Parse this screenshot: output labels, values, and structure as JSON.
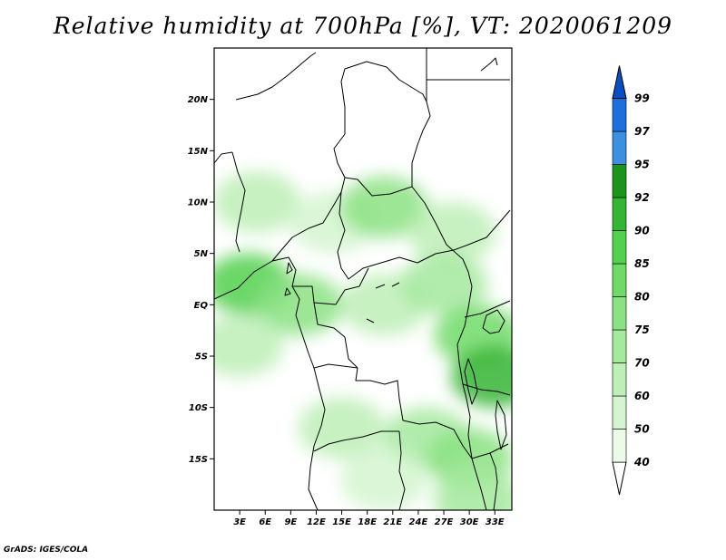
{
  "title": "Relative humidity at 700hPa [%], VT: 2020061209",
  "credit": "GrADS: IGES/COLA",
  "map": {
    "lon_range": [
      0,
      35
    ],
    "lat_range": [
      -20,
      25
    ],
    "lat_labels": [
      {
        "value": 20,
        "label": "20N"
      },
      {
        "value": 15,
        "label": "15N"
      },
      {
        "value": 10,
        "label": "10N"
      },
      {
        "value": 5,
        "label": "5N"
      },
      {
        "value": 0,
        "label": "EQ"
      },
      {
        "value": -5,
        "label": "5S"
      },
      {
        "value": -10,
        "label": "10S"
      },
      {
        "value": -15,
        "label": "15S"
      }
    ],
    "lon_labels": [
      {
        "value": 3,
        "label": "3E"
      },
      {
        "value": 6,
        "label": "6E"
      },
      {
        "value": 9,
        "label": "9E"
      },
      {
        "value": 12,
        "label": "12E"
      },
      {
        "value": 15,
        "label": "15E"
      },
      {
        "value": 18,
        "label": "18E"
      },
      {
        "value": 21,
        "label": "21E"
      },
      {
        "value": 24,
        "label": "24E"
      },
      {
        "value": 27,
        "label": "27E"
      },
      {
        "value": 30,
        "label": "30E"
      },
      {
        "value": 33,
        "label": "33E"
      }
    ]
  },
  "colorbar": {
    "levels": [
      "40",
      "50",
      "60",
      "70",
      "75",
      "80",
      "85",
      "90",
      "92",
      "95",
      "97",
      "99"
    ],
    "colors": [
      "#ffffff",
      "#ebfbe8",
      "#d4f5cf",
      "#bdefb6",
      "#a5e99d",
      "#8be283",
      "#70da69",
      "#52d04e",
      "#36b436",
      "#1c941c",
      "#3d8fe0",
      "#1e6fdc",
      "#0a4fbf"
    ]
  },
  "humidity_blobs": [
    {
      "lon": 5,
      "lat": 10,
      "level": 60
    },
    {
      "lon": 14,
      "lat": 8,
      "level": 50
    },
    {
      "lon": 20,
      "lat": 9.5,
      "level": 75
    },
    {
      "lon": 28,
      "lat": 7,
      "level": 60
    },
    {
      "lon": 4,
      "lat": 2,
      "level": 85
    },
    {
      "lon": 10,
      "lat": 0,
      "level": 75
    },
    {
      "lon": 20,
      "lat": 0,
      "level": 60
    },
    {
      "lon": 27,
      "lat": 2,
      "level": 70
    },
    {
      "lon": 31,
      "lat": -3,
      "level": 80
    },
    {
      "lon": 33,
      "lat": -7,
      "level": 90
    },
    {
      "lon": 25,
      "lat": -13,
      "level": 70
    },
    {
      "lon": 30,
      "lat": -15,
      "level": 75
    },
    {
      "lon": 31,
      "lat": -19,
      "level": 70
    },
    {
      "lon": 15,
      "lat": -12,
      "level": 60
    },
    {
      "lon": 3,
      "lat": -4,
      "level": 60
    },
    {
      "lon": 20,
      "lat": -17,
      "level": 50
    }
  ]
}
